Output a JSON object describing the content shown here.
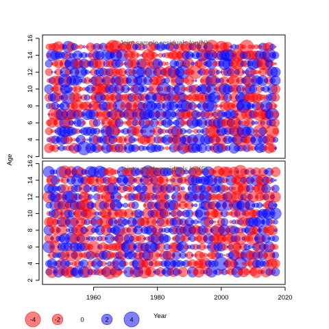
{
  "chart_data": {
    "type": "scatter",
    "encoding": "bubble",
    "xlabel": "Year",
    "ylabel": "Age",
    "xlim": [
      1944,
      2020
    ],
    "x_ticks": [
      1960,
      1980,
      2000,
      2020
    ],
    "colors": {
      "positive": "#0000ff",
      "negative": "#ff0000"
    },
    "panels": [
      {
        "title": "Joint sample residuals log(N)",
        "ylim": [
          1.8,
          16.4
        ],
        "y_ticks": [
          2,
          4,
          6,
          8,
          10,
          12,
          14,
          16
        ],
        "years_range": [
          1946,
          2017
        ],
        "ages_range": [
          3,
          15
        ],
        "seed": 11
      },
      {
        "title": "Joint sample residuals log(F)",
        "ylim": [
          1.5,
          16.3
        ],
        "y_ticks": [
          2,
          4,
          6,
          8,
          10,
          12,
          14,
          16
        ],
        "years_range": [
          1946,
          2017
        ],
        "ages_range": [
          3,
          15
        ],
        "seed": 29
      }
    ],
    "legend": [
      {
        "label": "-4",
        "value": -4
      },
      {
        "label": "-2",
        "value": -2
      },
      {
        "label": "0",
        "value": 0
      },
      {
        "label": "2",
        "value": 2
      },
      {
        "label": "4",
        "value": 4
      }
    ]
  }
}
